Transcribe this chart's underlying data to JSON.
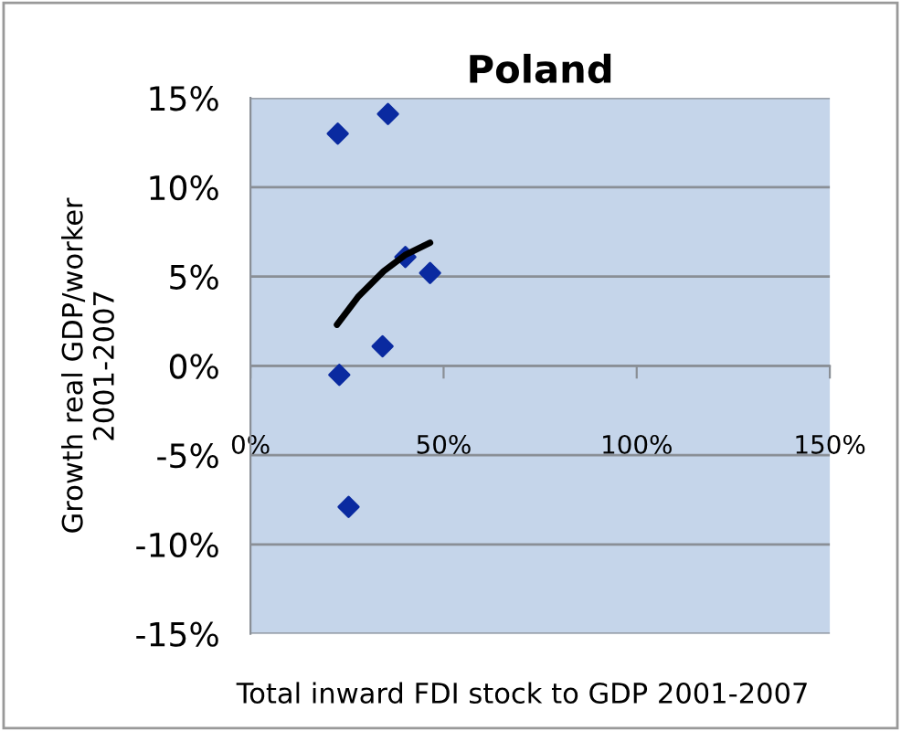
{
  "chart_data": {
    "type": "scatter",
    "title": "Poland",
    "xlabel": "Total inward FDI stock to GDP 2001-2007",
    "ylabel": "Growth real GDP/worker\n2001-2007",
    "xlim": [
      0,
      150
    ],
    "xticks": [
      {
        "value": 0,
        "label": "0%"
      },
      {
        "value": 50,
        "label": "50%"
      },
      {
        "value": 100,
        "label": "100%"
      },
      {
        "value": 150,
        "label": "150%"
      }
    ],
    "ylim": [
      -15,
      15
    ],
    "yticks": [
      {
        "value": -15,
        "label": "-15%"
      },
      {
        "value": -10,
        "label": "-10%"
      },
      {
        "value": -5,
        "label": "-5%"
      },
      {
        "value": 0,
        "label": "0%"
      },
      {
        "value": 5,
        "label": "5%"
      },
      {
        "value": 10,
        "label": "10%"
      },
      {
        "value": 15,
        "label": "15%"
      }
    ],
    "grid": "y",
    "marker": "diamond",
    "series": [
      {
        "color": "#0a2aa0",
        "x": [
          22.6,
          35.6,
          40.1,
          46.5,
          34.2,
          23,
          25.4
        ],
        "values": [
          13,
          14.1,
          6.1,
          5.2,
          1.1,
          -0.5,
          -7.9
        ]
      },
      {
        "type": "line",
        "color": "#000000",
        "marker": "none",
        "x": [
          22.4,
          28,
          34.5,
          40,
          46.5
        ],
        "values": [
          2.3,
          3.9,
          5.3,
          6.2,
          6.9
        ]
      }
    ]
  }
}
